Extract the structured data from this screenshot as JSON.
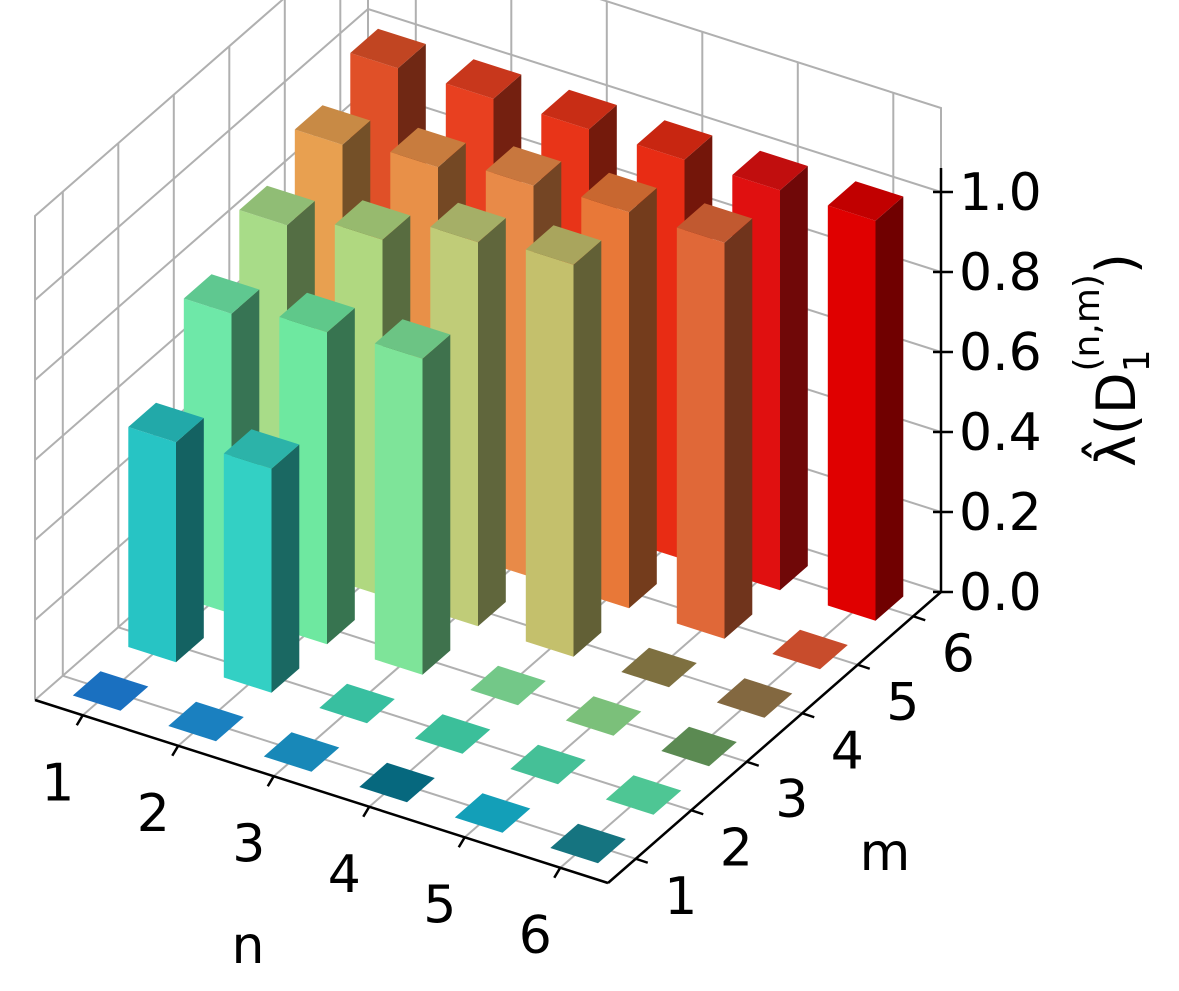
{
  "chart_data": {
    "type": "bar3d",
    "xlabel": "n",
    "ylabel": "m",
    "zlabel": {
      "prefix": "λ̂(D",
      "subscript": "1",
      "superscript": "(n,m)",
      "suffix": ")"
    },
    "x_ticks": [
      "1",
      "2",
      "3",
      "4",
      "5",
      "6"
    ],
    "y_ticks": [
      "1",
      "2",
      "3",
      "4",
      "5",
      "6"
    ],
    "z_ticks": [
      "0.0",
      "0.2",
      "0.4",
      "0.6",
      "0.8",
      "1.0"
    ],
    "zlim": [
      0,
      1
    ],
    "grid": true,
    "values": [
      [
        0.0,
        0.55,
        0.75,
        0.85,
        0.93,
        1.0
      ],
      [
        0.0,
        0.56,
        0.78,
        0.89,
        0.95,
        1.0
      ],
      [
        0.0,
        0.0,
        0.79,
        0.96,
        0.98,
        1.0
      ],
      [
        0.0,
        0.0,
        0.0,
        0.98,
        0.99,
        1.0
      ],
      [
        0.0,
        0.0,
        0.0,
        0.0,
        0.99,
        1.0
      ],
      [
        0.0,
        0.0,
        0.0,
        0.0,
        0.0,
        1.0
      ]
    ],
    "colors": [
      [
        "#1a70c0",
        "#27c4c4",
        "#6ee8a8",
        "#a8dc88",
        "#e8a050",
        "#e05028"
      ],
      [
        "#1a80c0",
        "#33d0c4",
        "#6ee8a0",
        "#b0d880",
        "#e89048",
        "#e84020"
      ],
      [
        "#1888b8",
        "#38bfa0",
        "#7ee499",
        "#c0cc78",
        "#e88a48",
        "#e83418"
      ],
      [
        "#06687e",
        "#3bbf9a",
        "#73c888",
        "#c4c06c",
        "#e87838",
        "#e82c14"
      ],
      [
        "#139fb8",
        "#45c097",
        "#7bc07a",
        "#7e7040",
        "#e06838",
        "#e01010"
      ],
      [
        "#157480",
        "#4ec694",
        "#5b8a52",
        "#836840",
        "#c84c2c",
        "#e00000"
      ]
    ]
  }
}
